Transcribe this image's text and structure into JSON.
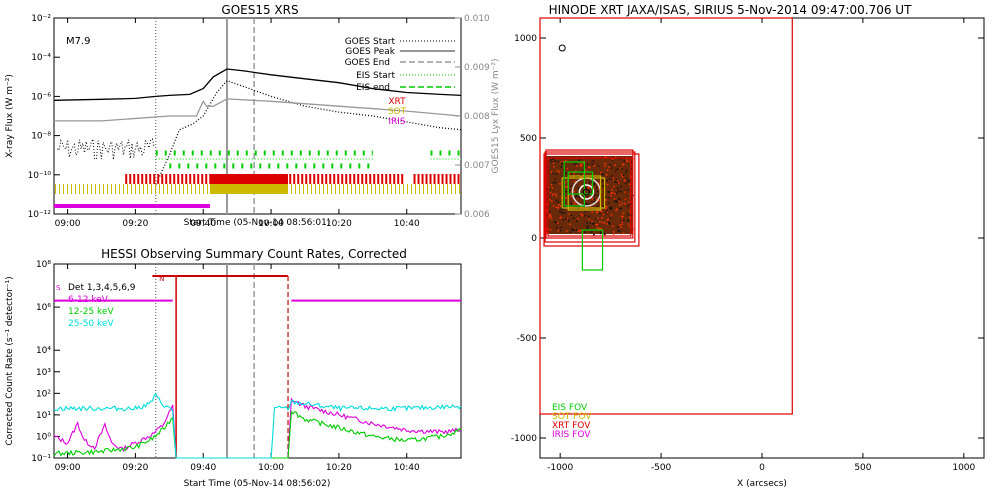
{
  "chart_data": [
    {
      "id": "goes",
      "type": "line",
      "title": "GOES15 XRS",
      "xlabel": "Start Time (05-Nov-14 08:56:01)",
      "ylabel": "X-ray Flux (W m⁻²)",
      "ylabel_right": "GOES15 Lyx Flux (W m⁻²)",
      "flare_class": "M7.9",
      "x_ticks": [
        "09:00",
        "09:20",
        "09:40",
        "10:00",
        "10:20",
        "10:40"
      ],
      "y_ticks": [
        "10⁻²",
        "10⁻⁴",
        "10⁻⁶",
        "10⁻⁸",
        "10⁻¹⁰",
        "10⁻¹²"
      ],
      "y_right_ticks": [
        "0.010",
        "0.009",
        "0.008",
        "0.007",
        "0.006"
      ],
      "ylim_log": [
        -12,
        -2
      ],
      "ylim_right": [
        0.006,
        0.01
      ],
      "legend": [
        "GOES Start",
        "GOES Peak",
        "GOES End",
        "EIS Start",
        "EIS end",
        "XRT",
        "SOT",
        "IRIS"
      ],
      "legend_colors": [
        "#000000",
        "#777777",
        "#999999",
        "#00cc00",
        "#00cc00",
        "#dd0000",
        "#ccbb00",
        "#dd00dd"
      ],
      "markers": {
        "goes_start": "09:26",
        "goes_peak": "09:47",
        "goes_end": "09:55"
      },
      "series": [
        {
          "color": "#000000",
          "points": [
            [
              "08:56",
              -6.2
            ],
            [
              "09:10",
              -6.15
            ],
            [
              "09:20",
              -6.1
            ],
            [
              "09:26",
              -6.0
            ],
            [
              "09:30",
              -5.95
            ],
            [
              "09:36",
              -5.9
            ],
            [
              "09:40",
              -5.6
            ],
            [
              "09:43",
              -5.0
            ],
            [
              "09:47",
              -4.6
            ],
            [
              "09:52",
              -4.7
            ],
            [
              "10:00",
              -4.9
            ],
            [
              "10:10",
              -5.1
            ],
            [
              "10:20",
              -5.3
            ],
            [
              "10:30",
              -5.6
            ],
            [
              "10:40",
              -5.8
            ],
            [
              "10:50",
              -5.9
            ],
            [
              "10:56",
              -5.95
            ]
          ]
        },
        {
          "color": "#000000",
          "dotted": true,
          "points": [
            [
              "09:26",
              -10.5
            ],
            [
              "09:30",
              -9.0
            ],
            [
              "09:33",
              -7.7
            ],
            [
              "09:37",
              -7.4
            ],
            [
              "09:40",
              -7.0
            ],
            [
              "09:44",
              -5.8
            ],
            [
              "09:47",
              -5.2
            ],
            [
              "09:52",
              -5.5
            ],
            [
              "10:00",
              -6.0
            ],
            [
              "10:10",
              -6.5
            ],
            [
              "10:20",
              -6.8
            ],
            [
              "10:30",
              -7.0
            ],
            [
              "10:40",
              -7.3
            ],
            [
              "10:50",
              -7.6
            ],
            [
              "10:56",
              -7.7
            ]
          ]
        },
        {
          "color": "#999999",
          "axis": "right",
          "points": [
            [
              "08:56",
              0.0079
            ],
            [
              "09:10",
              0.0079
            ],
            [
              "09:30",
              0.008
            ],
            [
              "09:38",
              0.008
            ],
            [
              "09:40",
              0.0083
            ],
            [
              "09:41",
              0.0082
            ],
            [
              "09:43",
              0.0082
            ],
            [
              "09:47",
              0.00835
            ],
            [
              "10:00",
              0.0083
            ],
            [
              "10:20",
              0.0082
            ],
            [
              "10:40",
              0.0081
            ],
            [
              "10:56",
              0.008
            ]
          ]
        }
      ],
      "instrument_bars": [
        {
          "name": "EIS",
          "color": "#00cc00"
        },
        {
          "name": "XRT",
          "color": "#dd0000"
        },
        {
          "name": "SOT",
          "color": "#ccbb00"
        },
        {
          "name": "IRIS",
          "color": "#dd00dd",
          "start": "08:56",
          "end": "09:42"
        }
      ]
    },
    {
      "id": "hessi",
      "type": "line",
      "title": "HESSI Observing Summary Count Rates, Corrected",
      "xlabel": "Start Time (05-Nov-14 08:56:02)",
      "ylabel": "Corrected Count Rate (s⁻¹ detector⁻¹)",
      "x_ticks": [
        "09:00",
        "09:20",
        "09:40",
        "10:00",
        "10:20",
        "10:40"
      ],
      "y_ticks": [
        "10⁸",
        "10⁶",
        "10⁴",
        "10³",
        "10²",
        "10¹",
        "10⁰",
        "10⁻¹"
      ],
      "y_tick_values": [
        8,
        6,
        4,
        3,
        2,
        1,
        0,
        -1
      ],
      "ylim_log": [
        -1,
        8
      ],
      "legend": [
        "Det 1,3,4,5,6,9",
        "6-12 keV",
        "12-25 keV",
        "25-50 keV"
      ],
      "legend_colors": [
        "#000000",
        "#dd00dd",
        "#00cc00",
        "#00dddd"
      ],
      "flag_labels": [
        "S",
        "N"
      ],
      "night": {
        "start": "09:32",
        "end": "10:05"
      },
      "series": [
        {
          "name": "6-12 keV",
          "color": "#dd00dd",
          "points": [
            [
              "08:56",
              0.0
            ],
            [
              "09:00",
              -0.3
            ],
            [
              "09:03",
              0.6
            ],
            [
              "09:05",
              -0.2
            ],
            [
              "09:08",
              -0.5
            ],
            [
              "09:11",
              0.5
            ],
            [
              "09:13",
              -0.3
            ],
            [
              "09:16",
              -0.6
            ],
            [
              "09:20",
              -0.3
            ],
            [
              "09:25",
              0.1
            ],
            [
              "09:28",
              0.5
            ],
            [
              "09:31",
              1.4
            ],
            [
              "09:32",
              -1
            ],
            [
              "10:05",
              -1
            ],
            [
              "10:06",
              1.7
            ],
            [
              "10:10",
              1.4
            ],
            [
              "10:20",
              1.0
            ],
            [
              "10:30",
              0.6
            ],
            [
              "10:40",
              0.3
            ],
            [
              "10:50",
              0.2
            ],
            [
              "10:56",
              0.3
            ]
          ]
        },
        {
          "name": "12-25 keV",
          "color": "#00cc00",
          "points": [
            [
              "08:56",
              -0.8
            ],
            [
              "09:10",
              -0.7
            ],
            [
              "09:20",
              -0.5
            ],
            [
              "09:25",
              -0.1
            ],
            [
              "09:28",
              0.3
            ],
            [
              "09:31",
              0.9
            ],
            [
              "09:32",
              -1
            ],
            [
              "10:05",
              -1
            ],
            [
              "10:06",
              1.2
            ],
            [
              "10:10",
              0.8
            ],
            [
              "10:20",
              0.4
            ],
            [
              "10:30",
              0.0
            ],
            [
              "10:40",
              -0.2
            ],
            [
              "10:50",
              0.0
            ],
            [
              "10:56",
              0.3
            ]
          ]
        },
        {
          "name": "25-50 keV",
          "color": "#00dddd",
          "points": [
            [
              "08:56",
              1.3
            ],
            [
              "09:10",
              1.3
            ],
            [
              "09:20",
              1.3
            ],
            [
              "09:24",
              1.5
            ],
            [
              "09:26",
              1.9
            ],
            [
              "09:28",
              1.5
            ],
            [
              "09:31",
              1.2
            ],
            [
              "09:32",
              -1
            ],
            [
              "10:00",
              -1
            ],
            [
              "10:01",
              1.3
            ],
            [
              "10:05",
              1.3
            ],
            [
              "10:06",
              1.6
            ],
            [
              "10:20",
              1.3
            ],
            [
              "10:40",
              1.3
            ],
            [
              "10:56",
              1.4
            ]
          ]
        },
        {
          "name": "Det 1,3,4,5,6,9",
          "color": "#dd00dd",
          "points": [
            [
              "08:56",
              6.3
            ],
            [
              "09:31",
              6.3
            ]
          ]
        },
        {
          "name": "flag",
          "color": "#dd00dd",
          "points": [
            [
              "10:06",
              6.3
            ],
            [
              "10:56",
              6.3
            ]
          ]
        }
      ]
    },
    {
      "id": "fov",
      "type": "scatter",
      "title": "HINODE XRT JAXA/ISAS, SIRIUS  5-Nov-2014 09:47:00.706 UT",
      "xlabel": "X (arcsecs)",
      "ylabel": "",
      "xlim": [
        -1100,
        1100
      ],
      "ylim": [
        -1100,
        1100
      ],
      "x_ticks": [
        "-1000",
        "-500",
        "0",
        "500",
        "1000"
      ],
      "x_tick_values": [
        -1000,
        -500,
        0,
        500,
        1000
      ],
      "y_ticks": [
        "1000",
        "500",
        "0",
        "-500",
        "-1000"
      ],
      "y_tick_values": [
        1000,
        500,
        0,
        -500,
        -1000
      ],
      "legend": [
        "EIS FOV",
        "SOT FOV",
        "XRT FOV",
        "IRIS FOV"
      ],
      "legend_colors": [
        "#00cc00",
        "#ccbb00",
        "#dd0000",
        "#dd00dd"
      ],
      "fov_boxes": [
        {
          "color": "#dd0000",
          "x0": -1100,
          "x1": 150,
          "y0": -880,
          "y1": 1100
        },
        {
          "color": "#dd0000",
          "x0": -1080,
          "x1": -610,
          "y0": -40,
          "y1": 420
        },
        {
          "color": "#dd0000",
          "x0": -1075,
          "x1": -630,
          "y0": -20,
          "y1": 430
        },
        {
          "color": "#dd0000",
          "x0": -1070,
          "x1": -640,
          "y0": 0,
          "y1": 440
        },
        {
          "color": "#dd0000",
          "x0": -1060,
          "x1": -650,
          "y0": 10,
          "y1": 400
        },
        {
          "color": "#ccbb00",
          "x0": -990,
          "x1": -780,
          "y0": 150,
          "y1": 300
        },
        {
          "color": "#ccbb00",
          "x0": -960,
          "x1": -800,
          "y0": 140,
          "y1": 310
        },
        {
          "color": "#00cc00",
          "x0": -960,
          "x1": -840,
          "y0": 220,
          "y1": 330
        },
        {
          "color": "#00cc00",
          "x0": -980,
          "x1": -880,
          "y0": 160,
          "y1": 380
        },
        {
          "color": "#00cc00",
          "x0": -890,
          "x1": -790,
          "y0": -160,
          "y1": 40
        }
      ],
      "sources": [
        {
          "x": -990,
          "y": 950
        },
        {
          "x": -870,
          "y": 230
        }
      ]
    }
  ]
}
